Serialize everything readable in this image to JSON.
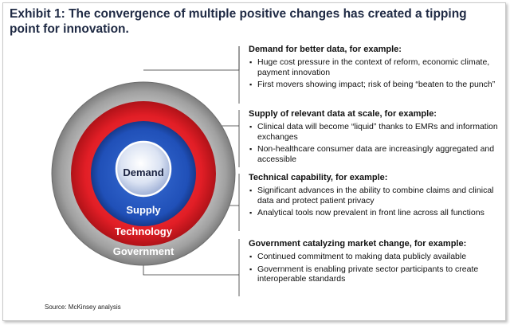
{
  "title": "Exhibit 1: The convergence of multiple positive changes has created a tipping point for innovation.",
  "rings": {
    "demand": "Demand",
    "supply": "Supply",
    "technology": "Technology",
    "government": "Government"
  },
  "sections": [
    {
      "heading": "Demand for better data, for example:",
      "bullets": [
        "Huge cost pressure in the context of reform, economic climate, payment innovation",
        "First movers showing impact; risk of being “beaten to the punch”"
      ]
    },
    {
      "heading": "Supply of relevant data at scale, for example:",
      "bullets": [
        "Clinical data will become “liquid” thanks to EMRs and information exchanges",
        "Non-healthcare consumer data are increasingly aggregated and accessible"
      ]
    },
    {
      "heading": "Technical capability, for example:",
      "bullets": [
        "Significant advances in the ability to combine claims and clinical data and protect patient privacy",
        "Analytical tools now prevalent in front line across all functions"
      ]
    },
    {
      "heading": "Government catalyzing market change, for example:",
      "bullets": [
        "Continued commitment to making data publicly available",
        "Government is enabling private sector participants to create interoperable standards"
      ]
    }
  ],
  "source": "Source: McKinsey analysis",
  "colors": {
    "government_ring": "#a9a9a9",
    "technology_ring": "#e21e26",
    "supply_ring": "#2050b8",
    "demand_core": "#cfd8ec",
    "title": "#1f2a44"
  }
}
